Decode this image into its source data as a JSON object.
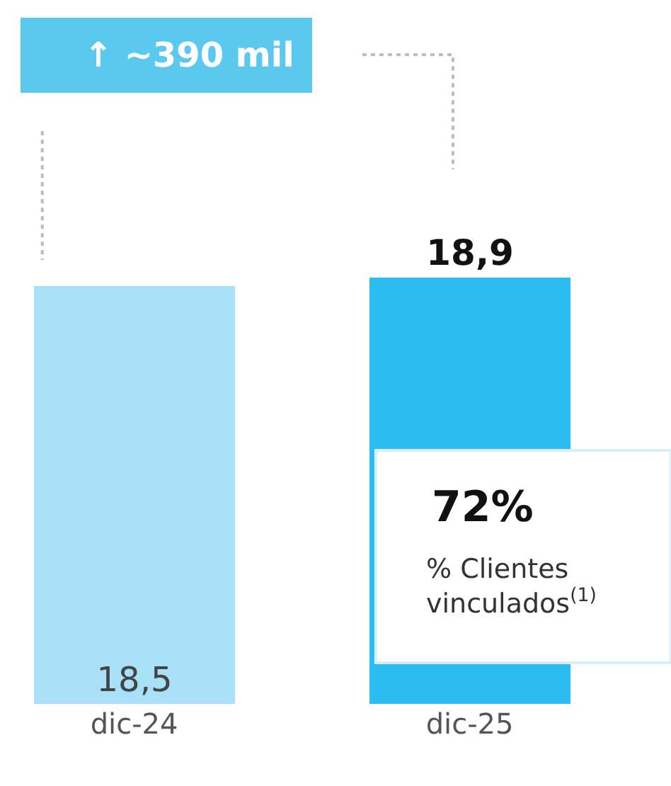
{
  "chart_data": {
    "type": "bar",
    "categories": [
      "dic-24",
      "dic-25"
    ],
    "values": [
      18.5,
      18.9
    ],
    "colors": [
      "#a8e0f7",
      "#2cbcef"
    ],
    "value_labels": [
      "18,5",
      "18,9"
    ],
    "annotations": [
      "↑ ~390 mil",
      "72%",
      "% Clientes\nvinculados$^{(1)}$"
    ]
  }
}
